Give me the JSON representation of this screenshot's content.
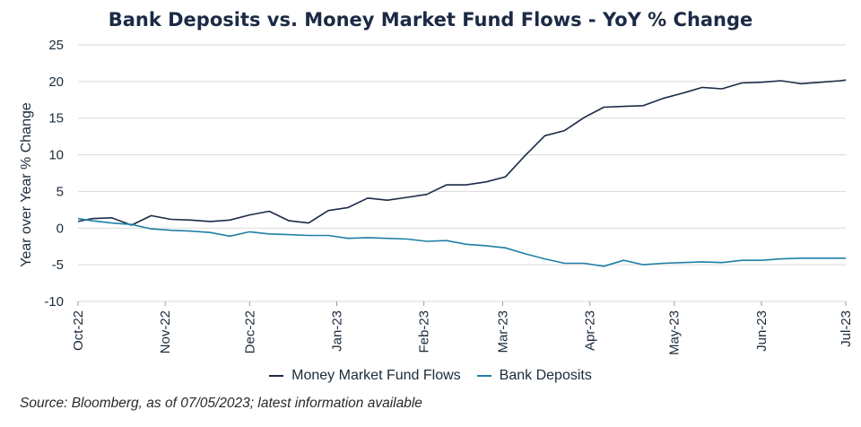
{
  "source_note": "Source: Bloomberg, as of 07/05/2023; latest information available",
  "chart_data": {
    "type": "line",
    "title": "Bank Deposits vs. Money Market Fund Flows - YoY % Change",
    "xlabel": "",
    "ylabel": "Year over Year % Change",
    "ylim": [
      -10,
      25
    ],
    "yticks": [
      25,
      20,
      15,
      10,
      5,
      0,
      -5,
      -10
    ],
    "ytick_labels": [
      "25",
      "20",
      "15",
      "10",
      "5",
      "0",
      "-5",
      "-10"
    ],
    "x_tick_labels": [
      "Oct-22",
      "Nov-22",
      "Dec-22",
      "Jan-23",
      "Feb-23",
      "Mar-23",
      "Apr-23",
      "May-23",
      "Jun-23",
      "Jul-23"
    ],
    "x_tick_dates": [
      "2022-10-01",
      "2022-11-01",
      "2022-12-01",
      "2023-01-01",
      "2023-02-01",
      "2023-03-01",
      "2023-04-01",
      "2023-05-01",
      "2023-06-01",
      "2023-07-01"
    ],
    "grid": "horizontal",
    "legend_position": "bottom",
    "x": [
      "2022-10-01",
      "2022-10-06",
      "2022-10-13",
      "2022-10-20",
      "2022-10-27",
      "2022-11-03",
      "2022-11-10",
      "2022-11-17",
      "2022-11-24",
      "2022-12-01",
      "2022-12-08",
      "2022-12-15",
      "2022-12-22",
      "2022-12-29",
      "2023-01-05",
      "2023-01-12",
      "2023-01-19",
      "2023-01-26",
      "2023-02-02",
      "2023-02-09",
      "2023-02-16",
      "2023-02-23",
      "2023-03-02",
      "2023-03-09",
      "2023-03-16",
      "2023-03-23",
      "2023-03-30",
      "2023-04-06",
      "2023-04-13",
      "2023-04-20",
      "2023-04-27",
      "2023-05-04",
      "2023-05-11",
      "2023-05-18",
      "2023-05-25",
      "2023-06-01",
      "2023-06-08",
      "2023-06-15",
      "2023-06-22",
      "2023-06-29",
      "2023-07-01"
    ],
    "series": [
      {
        "name": "Money Market Fund Flows",
        "color": "#1b2a45",
        "values": [
          0.9,
          1.3,
          1.4,
          0.4,
          1.7,
          1.2,
          1.1,
          0.9,
          1.1,
          1.8,
          2.3,
          1.0,
          0.7,
          2.4,
          2.8,
          4.1,
          3.8,
          4.2,
          4.6,
          5.9,
          5.9,
          6.3,
          7.0,
          9.9,
          12.6,
          13.3,
          15.1,
          16.5,
          16.6,
          16.7,
          17.7,
          18.4,
          19.2,
          19.0,
          19.8,
          19.9,
          20.1,
          19.7,
          19.9,
          20.1,
          20.2
        ]
      },
      {
        "name": "Bank Deposits",
        "color": "#1f7fa6",
        "values": [
          1.3,
          1.0,
          0.7,
          0.5,
          -0.1,
          -0.3,
          -0.4,
          -0.6,
          -1.1,
          -0.5,
          -0.8,
          -0.9,
          -1.0,
          -1.0,
          -1.4,
          -1.3,
          -1.4,
          -1.5,
          -1.8,
          -1.7,
          -2.2,
          -2.4,
          -2.7,
          -3.5,
          -4.2,
          -4.8,
          -4.8,
          -5.2,
          -4.4,
          -5.0,
          -4.8,
          -4.7,
          -4.6,
          -4.7,
          -4.4,
          -4.4,
          -4.2,
          -4.1,
          -4.1,
          -4.1,
          -4.1
        ]
      }
    ]
  }
}
